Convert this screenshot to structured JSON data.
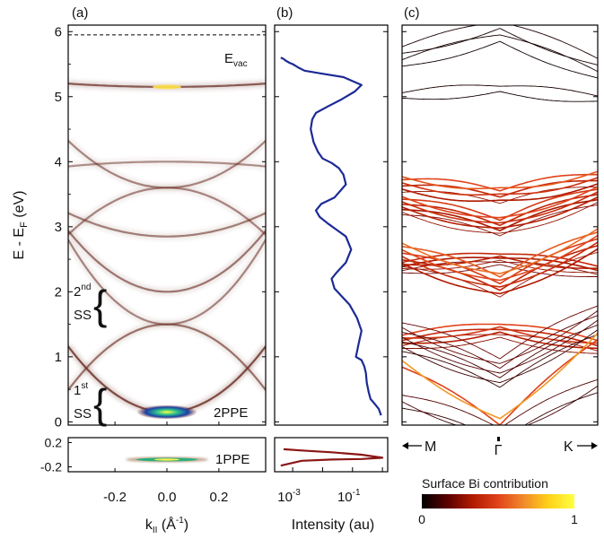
{
  "panels": {
    "a": {
      "label": "(a)"
    },
    "b": {
      "label": "(b)"
    },
    "c": {
      "label": "(c)"
    }
  },
  "annotations": {
    "evac_main": "E",
    "evac_sub": "vac",
    "ss2_num": "2",
    "ss2_sup": "nd",
    "ss2_word": "SS",
    "ss1_num": "1",
    "ss1_sup": "st",
    "ss1_word": "SS",
    "ppe2": "2PPE",
    "ppe1": "1PPE",
    "k_m": "M",
    "k_gamma": "Γ",
    "k_k": "K"
  },
  "axes": {
    "y_main": "E - E",
    "y_sub": "F",
    "y_unit": " (eV)",
    "x_a_main": "k",
    "x_a_sub": "II",
    "x_a_unit": " (Å",
    "x_a_sup": "-1",
    "x_a_close": ")",
    "x_b": "Intensity (au)"
  },
  "colorbar": {
    "title": "Surface Bi contribution",
    "min": "0",
    "max": "1",
    "colors": [
      "#000000",
      "#5a0000",
      "#b11a00",
      "#e0431b",
      "#f08a2a",
      "#ffd21a",
      "#ffff40"
    ]
  },
  "chart_data": [
    {
      "id": "a",
      "type": "heatmap",
      "title": "(a)",
      "xlabel": "k_II (Å^-1)",
      "ylabel": "E - E_F (eV)",
      "xlim": [
        -0.38,
        0.38
      ],
      "ylim": [
        -0.05,
        6.1
      ],
      "x_ticks": [
        -0.2,
        0.0,
        0.2
      ],
      "x_tick_labels": [
        "-0.2",
        "0.0",
        "0.2"
      ],
      "y_ticks": [
        0,
        1,
        2,
        3,
        4,
        5,
        6
      ],
      "y_tick_labels": [
        "0",
        "1",
        "2",
        "3",
        "4",
        "5",
        "6"
      ],
      "reference_lines": [
        {
          "name": "E_vac",
          "y": 5.95,
          "style": "dashed"
        }
      ],
      "bands": [
        {
          "e0": 5.15,
          "curv": 0.35,
          "amp": 0.85
        },
        {
          "e0": 4.0,
          "curv": -0.5,
          "amp": 0.35
        },
        {
          "e0": 3.6,
          "curv": 5.0,
          "amp": 0.45
        },
        {
          "e0": 3.6,
          "curv": -5.0,
          "amp": 0.45
        },
        {
          "e0": 2.85,
          "curv": 2.5,
          "amp": 0.5
        },
        {
          "e0": 2.0,
          "curv": 6.5,
          "amp": 0.55
        },
        {
          "e0": 1.5,
          "curv": -7.0,
          "amp": 0.6
        },
        {
          "e0": 1.5,
          "curv": 9.0,
          "amp": 0.45
        },
        {
          "e0": 0.15,
          "curv": 7.0,
          "amp": 1.0
        }
      ]
    },
    {
      "id": "a-1ppe",
      "type": "heatmap",
      "xlim": [
        -0.38,
        0.38
      ],
      "ylim": [
        -0.28,
        0.28
      ],
      "y_ticks": [
        0.2,
        -0.2
      ],
      "y_tick_labels": [
        "0.2",
        "-0.2"
      ],
      "bands": [
        {
          "e0": -0.08,
          "curv": 0.0,
          "amp": 1.0
        }
      ]
    },
    {
      "id": "b",
      "type": "line",
      "title": "(b)",
      "xlabel": "Intensity (au)",
      "xscale": "log",
      "xlim": [
        0.00025,
        1.5
      ],
      "ylim": [
        -0.05,
        6.1
      ],
      "x_ticks": [
        0.001,
        0.1
      ],
      "x_tick_labels": [
        "10",
        "10"
      ],
      "x_tick_exponents": [
        "-3",
        "-1"
      ],
      "series": [
        {
          "color": "#1c2a96",
          "x": [
            0.9,
            0.75,
            0.5,
            0.4,
            0.35,
            0.3,
            0.28,
            0.25,
            0.2,
            0.13,
            0.16,
            0.2,
            0.14,
            0.08,
            0.04,
            0.025,
            0.02,
            0.03,
            0.06,
            0.09,
            0.06,
            0.03,
            0.015,
            0.008,
            0.006,
            0.009,
            0.025,
            0.06,
            0.05,
            0.035,
            0.02,
            0.01,
            0.007,
            0.005,
            0.004,
            0.0045,
            0.006,
            0.015,
            0.04,
            0.12,
            0.2,
            0.05,
            0.008,
            0.0025,
            0.0015,
            0.0012,
            0.001,
            0.0008,
            0.0006,
            0.0005,
            0.0004
          ],
          "y": [
            0.1,
            0.2,
            0.3,
            0.35,
            0.45,
            0.6,
            0.75,
            0.85,
            0.95,
            1.0,
            1.2,
            1.4,
            1.6,
            1.8,
            1.95,
            2.05,
            2.2,
            2.3,
            2.45,
            2.65,
            2.85,
            2.95,
            3.05,
            3.15,
            3.25,
            3.35,
            3.45,
            3.65,
            3.8,
            3.9,
            3.98,
            4.05,
            4.15,
            4.3,
            4.5,
            4.65,
            4.75,
            4.85,
            4.95,
            5.08,
            5.18,
            5.3,
            5.36,
            5.4,
            5.45,
            5.48,
            5.5,
            5.52,
            5.55,
            5.58,
            5.6
          ]
        }
      ]
    },
    {
      "id": "b-1ppe",
      "type": "line",
      "xscale": "log",
      "xlim": [
        0.00025,
        1.5
      ],
      "ylim": [
        -0.28,
        0.28
      ],
      "series": [
        {
          "color": "#8b1616",
          "x": [
            0.0004,
            0.002,
            0.02,
            0.2,
            1.0,
            0.2,
            0.02,
            0.002,
            0.0005
          ],
          "y": [
            -0.18,
            -0.1,
            -0.08,
            -0.07,
            -0.05,
            0.0,
            0.04,
            0.07,
            0.09
          ]
        }
      ]
    },
    {
      "id": "c",
      "type": "line",
      "title": "(c)",
      "xlim": [
        -1,
        1
      ],
      "ylim": [
        -0.05,
        6.1
      ],
      "x_tick_labels": [
        "M",
        "Γ",
        "K"
      ],
      "band_groups": [
        {
          "e0": 6.0,
          "slope": -0.45,
          "n": 4,
          "spread": 0.15,
          "bi": 0.05
        },
        {
          "e0": 5.12,
          "slope": -0.12,
          "n": 2,
          "spread": 0.04,
          "bi": 0.05
        },
        {
          "e0": 3.48,
          "slope": 0.2,
          "n": 6,
          "spread": 0.12,
          "bi": 0.55
        },
        {
          "e0": 3.0,
          "slope": 0.38,
          "n": 8,
          "spread": 0.14,
          "bi": 0.5
        },
        {
          "e0": 2.5,
          "slope": -0.15,
          "n": 6,
          "spread": 0.08,
          "bi": 0.4
        },
        {
          "e0": 2.1,
          "slope": 0.55,
          "n": 8,
          "spread": 0.18,
          "bi": 0.6
        },
        {
          "e0": 1.4,
          "slope": -0.2,
          "n": 6,
          "spread": 0.1,
          "bi": 0.5
        },
        {
          "e0": 0.75,
          "slope": 0.65,
          "n": 7,
          "spread": 0.22,
          "bi": 0.2
        },
        {
          "e0": 0.0,
          "slope": 1.05,
          "n": 2,
          "spread": 0.05,
          "bi": 0.7
        },
        {
          "e0": -0.2,
          "slope": 0.6,
          "n": 3,
          "spread": 0.1,
          "bi": 0.15
        }
      ]
    }
  ]
}
